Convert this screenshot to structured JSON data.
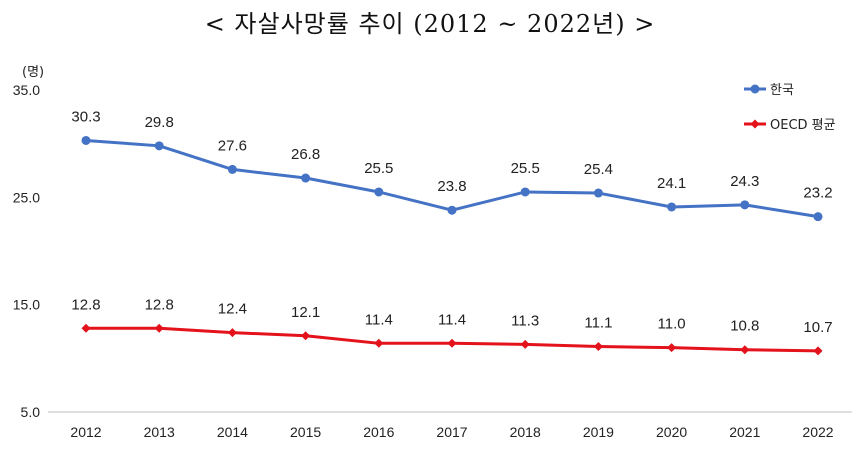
{
  "chart_data": {
    "type": "line",
    "title": "< 자살사망률 추이 (2012 ~ 2022년) >",
    "ylabel": "(명)",
    "xlabel": "",
    "ylim": [
      5.0,
      35.0
    ],
    "yticks": [
      "5.0",
      "15.0",
      "25.0",
      "35.0"
    ],
    "grid": false,
    "legend_position": "top-right",
    "categories": [
      "2012",
      "2013",
      "2014",
      "2015",
      "2016",
      "2017",
      "2018",
      "2019",
      "2020",
      "2021",
      "2022"
    ],
    "series": [
      {
        "name": "한국",
        "color": "#4472C4",
        "values": [
          30.3,
          29.8,
          27.6,
          26.8,
          25.5,
          23.8,
          25.5,
          25.4,
          24.1,
          24.3,
          23.2
        ],
        "labels": [
          "30.3",
          "29.8",
          "27.6",
          "26.8",
          "25.5",
          "23.8",
          "25.5",
          "25.4",
          "24.1",
          "24.3",
          "23.2"
        ]
      },
      {
        "name": "OECD 평균",
        "color": "#E3121B",
        "values": [
          12.8,
          12.8,
          12.4,
          12.1,
          11.4,
          11.4,
          11.3,
          11.1,
          11.0,
          10.8,
          10.7
        ],
        "labels": [
          "12.8",
          "12.8",
          "12.4",
          "12.1",
          "11.4",
          "11.4",
          "11.3",
          "11.1",
          "11.0",
          "10.8",
          "10.7"
        ]
      }
    ]
  }
}
